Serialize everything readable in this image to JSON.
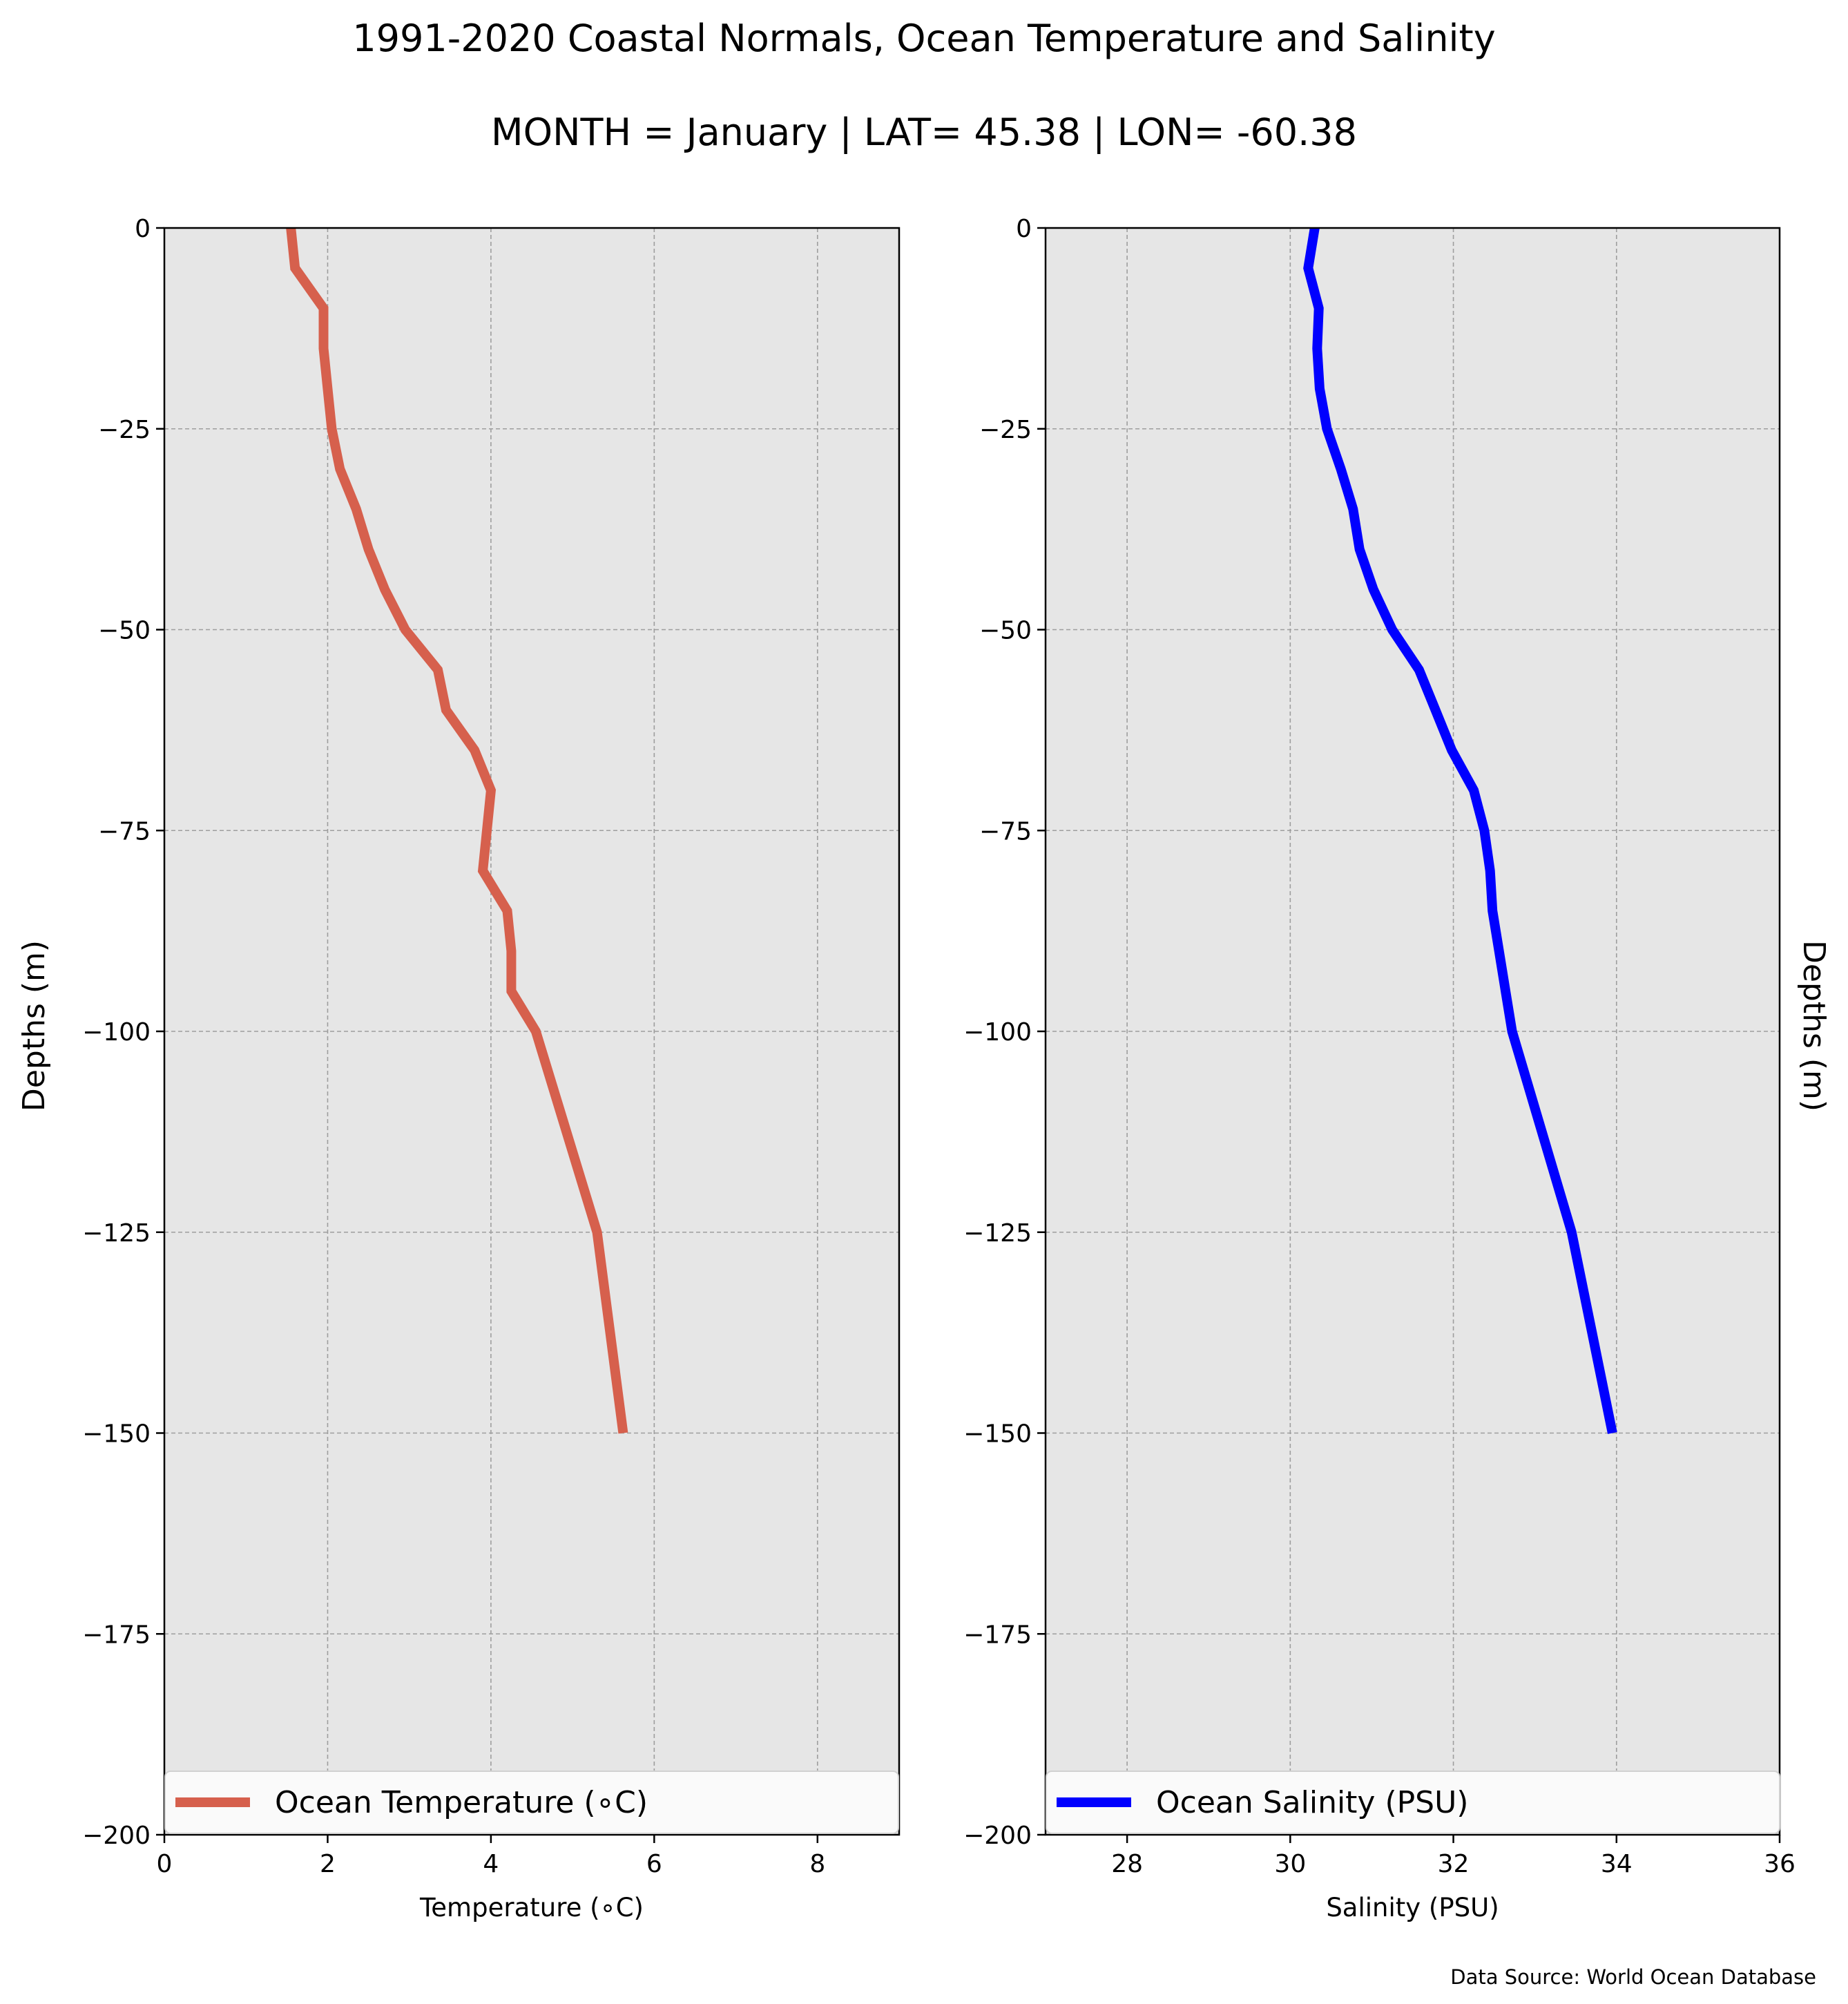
{
  "figure": {
    "title": "1991-2020 Coastal Normals, Ocean Temperature and Salinity",
    "subtitle": "MONTH = January | LAT= 45.38 | LON= -60.38",
    "source": "Data Source: World Ocean Database",
    "background": "#e6e6e6",
    "grid_color": "#9e9e9e"
  },
  "chart_data": [
    {
      "type": "line",
      "xlabel": "Temperature (∘C)",
      "ylabel": "Depths (m)",
      "xlim": [
        0,
        9
      ],
      "ylim": [
        -200,
        0
      ],
      "xticks": [
        0,
        2,
        4,
        6,
        8
      ],
      "xtick_labels": [
        "0",
        "2",
        "4",
        "6",
        "8"
      ],
      "yticks": [
        0,
        -25,
        -50,
        -75,
        -100,
        -125,
        -150,
        -175,
        -200
      ],
      "ytick_labels": [
        "0",
        "−25",
        "−50",
        "−75",
        "−100",
        "−125",
        "−150",
        "−175",
        "−200"
      ],
      "grid": true,
      "legend_position": "bottom",
      "series": [
        {
          "name": "Ocean Temperature (∘C)",
          "color": "#d6604d",
          "x": [
            1.55,
            1.6,
            1.95,
            1.95,
            2.0,
            2.05,
            2.15,
            2.35,
            2.5,
            2.7,
            2.95,
            3.35,
            3.45,
            3.8,
            4.0,
            3.95,
            3.9,
            4.2,
            4.25,
            4.25,
            4.55,
            5.3,
            5.62
          ],
          "y": [
            0,
            -5,
            -10,
            -15,
            -20,
            -25,
            -30,
            -35,
            -40,
            -45,
            -50,
            -55,
            -60,
            -65,
            -70,
            -75,
            -80,
            -85,
            -90,
            -95,
            -100,
            -125,
            -150
          ]
        }
      ]
    },
    {
      "type": "line",
      "xlabel": "Salinity (PSU)",
      "ylabel": "Depths (m)",
      "xlim": [
        27,
        36
      ],
      "ylim": [
        -200,
        0
      ],
      "xticks": [
        28,
        30,
        32,
        34,
        36
      ],
      "xtick_labels": [
        "28",
        "30",
        "32",
        "34",
        "36"
      ],
      "yticks": [
        0,
        -25,
        -50,
        -75,
        -100,
        -125,
        -150,
        -175,
        -200
      ],
      "ytick_labels": [
        "0",
        "−25",
        "−50",
        "−75",
        "−100",
        "−125",
        "−150",
        "−175",
        "−200"
      ],
      "grid": true,
      "legend_position": "bottom",
      "series": [
        {
          "name": "Ocean Salinity (PSU)",
          "color": "#0000ff",
          "x": [
            30.3,
            30.22,
            30.35,
            30.33,
            30.36,
            30.45,
            30.62,
            30.77,
            30.85,
            31.02,
            31.25,
            31.58,
            31.78,
            31.98,
            32.25,
            32.38,
            32.45,
            32.48,
            32.56,
            32.64,
            32.72,
            33.45,
            33.95
          ],
          "y": [
            0,
            -5,
            -10,
            -15,
            -20,
            -25,
            -30,
            -35,
            -40,
            -45,
            -50,
            -55,
            -60,
            -65,
            -70,
            -75,
            -80,
            -85,
            -90,
            -95,
            -100,
            -125,
            -150
          ]
        }
      ]
    }
  ]
}
